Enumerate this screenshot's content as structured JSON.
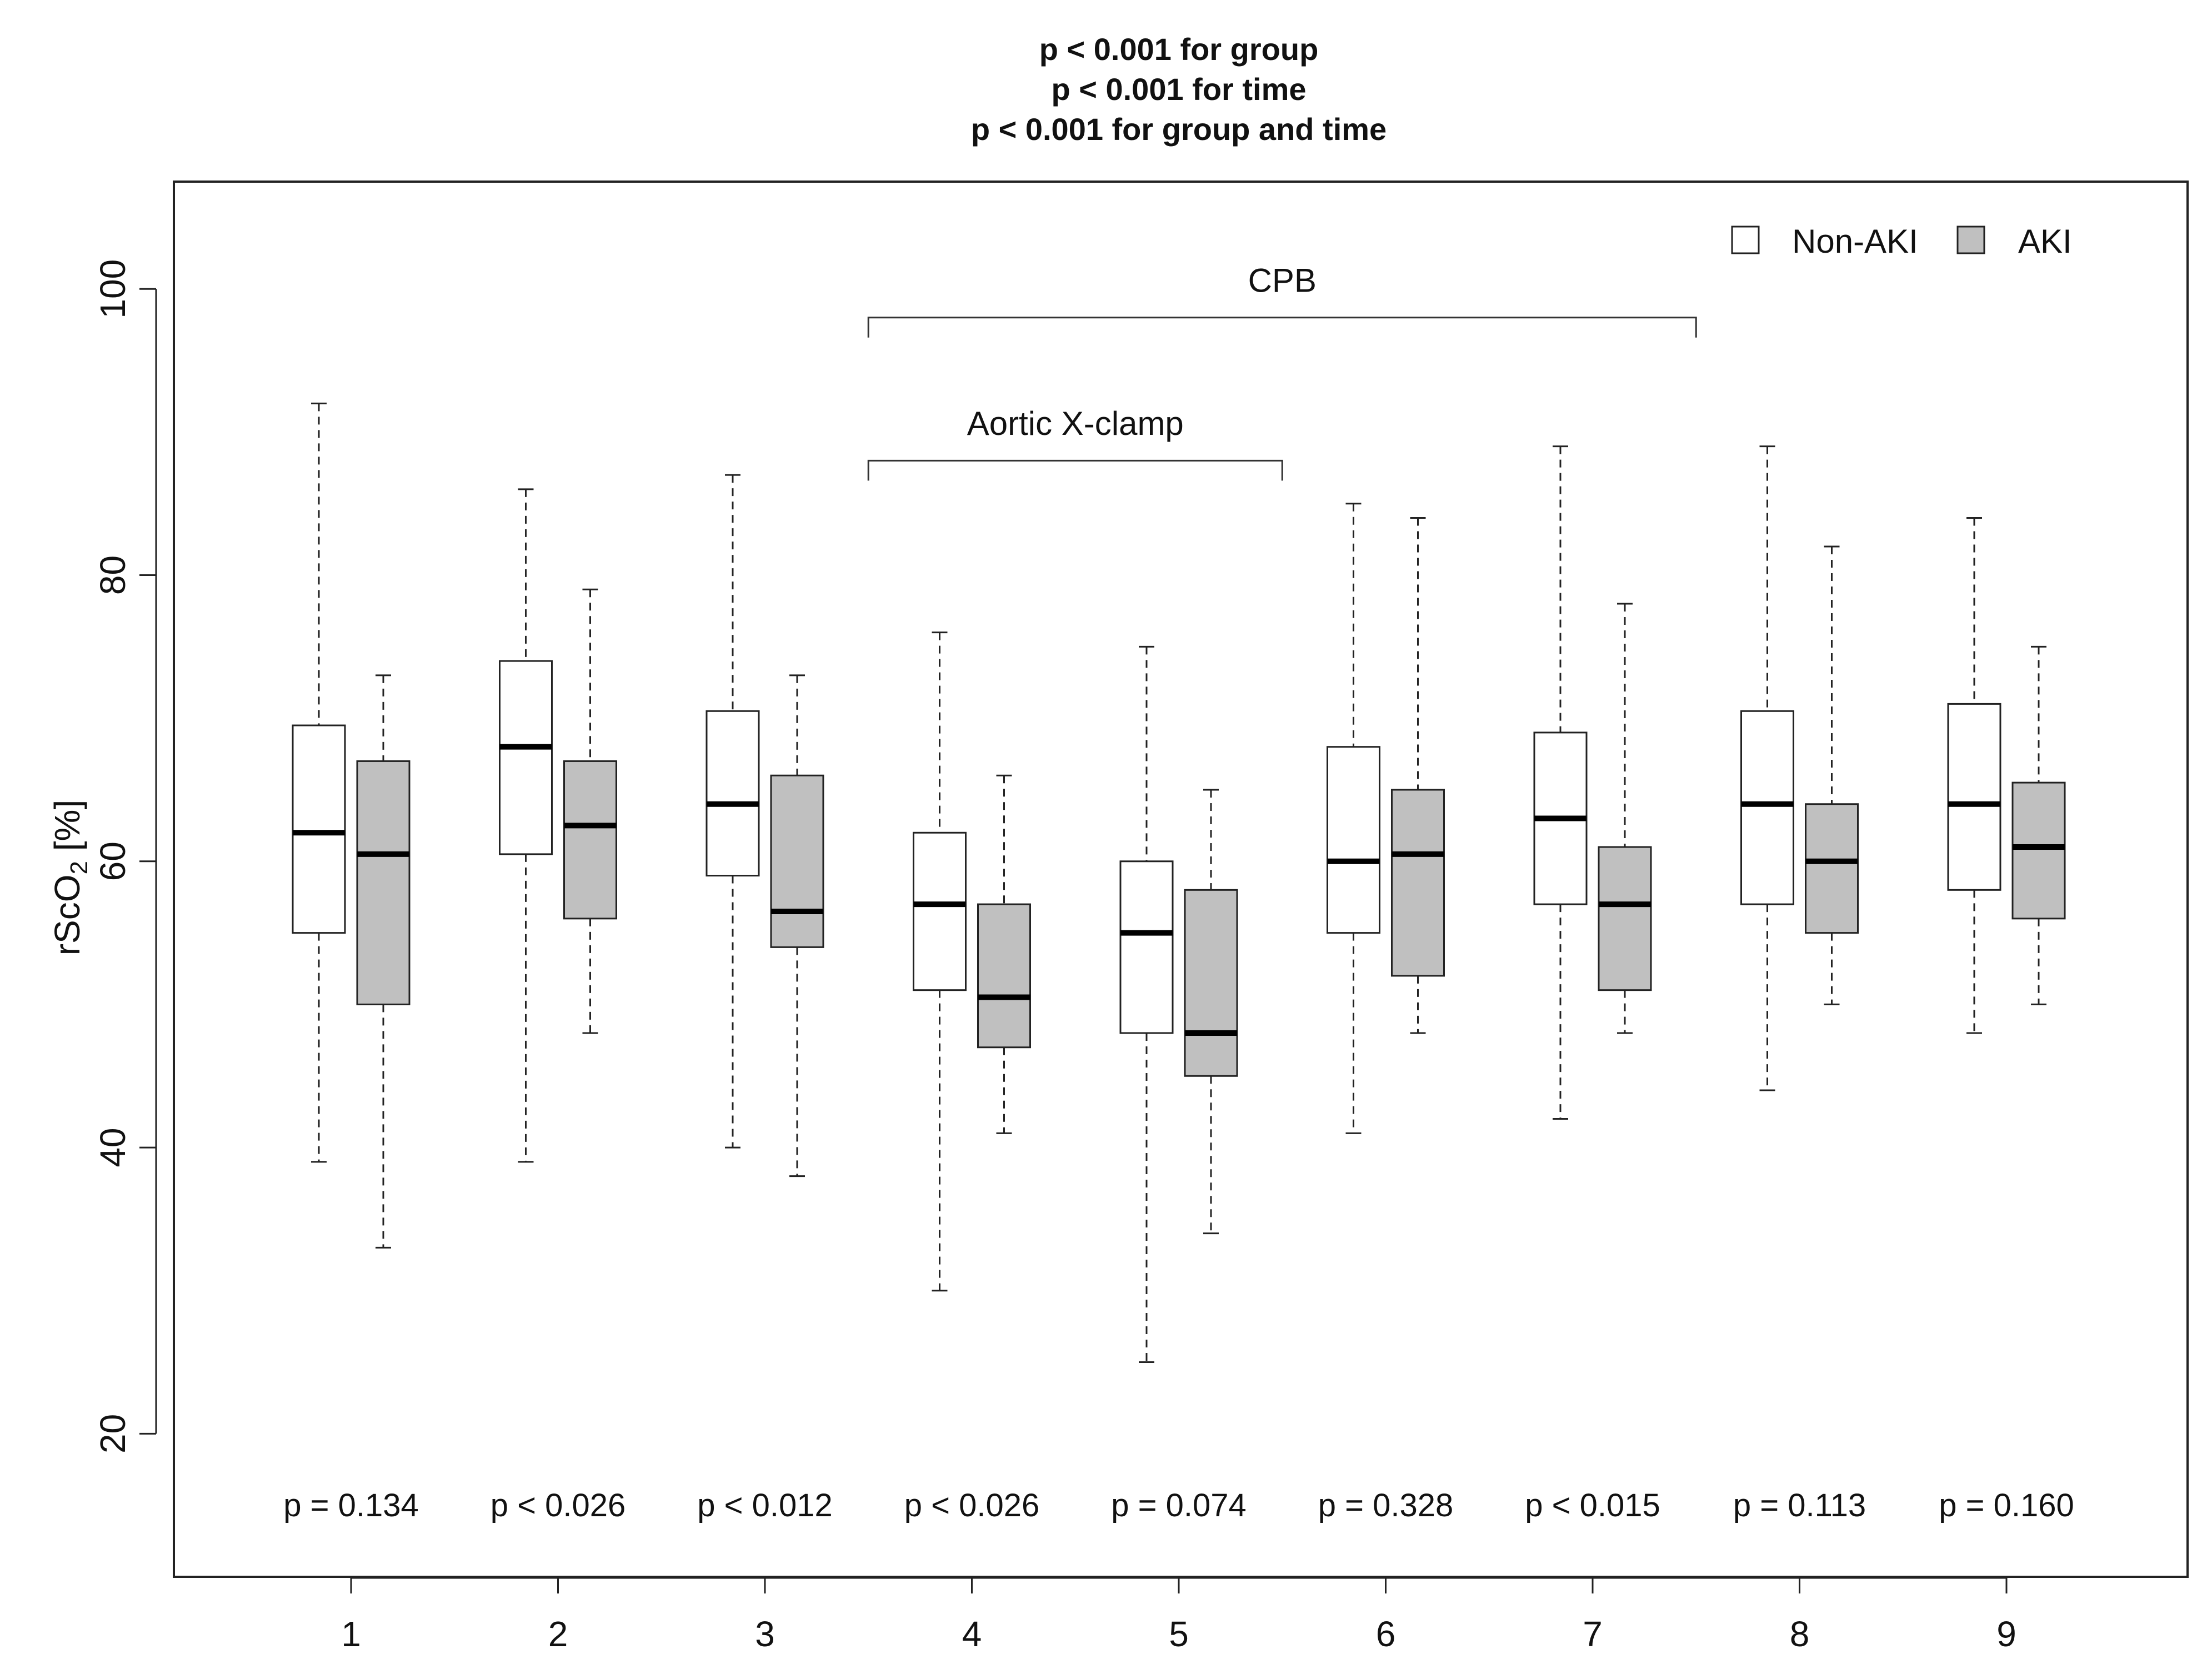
{
  "chart_data": {
    "type": "boxplot",
    "title_lines": [
      "p < 0.001 for group",
      "p < 0.001 for time",
      "p < 0.001 for group and time"
    ],
    "ylabel": {
      "main": "rScO",
      "sub": "2",
      "unit": " [%]"
    },
    "ylim": [
      10,
      107.5
    ],
    "y_ticks": [
      "20",
      "40",
      "60",
      "80",
      "100"
    ],
    "x_ticks": [
      "1",
      "2",
      "3",
      "4",
      "5",
      "6",
      "7",
      "8",
      "9"
    ],
    "legend": [
      {
        "name": "Non-AKI",
        "color": "#ffffff"
      },
      {
        "name": "AKI",
        "color": "#c0c0c0"
      }
    ],
    "series": [
      {
        "name": "Non-AKI",
        "color": "#ffffff",
        "boxes": [
          {
            "time": 1,
            "min": 39,
            "q1": 55,
            "median": 62,
            "q3": 69.5,
            "max": 92
          },
          {
            "time": 2,
            "min": 39,
            "q1": 60.5,
            "median": 68,
            "q3": 74,
            "max": 86
          },
          {
            "time": 3,
            "min": 40,
            "q1": 59,
            "median": 64,
            "q3": 70.5,
            "max": 87
          },
          {
            "time": 4,
            "min": 30,
            "q1": 51,
            "median": 57,
            "q3": 62,
            "max": 76
          },
          {
            "time": 5,
            "min": 25,
            "q1": 48,
            "median": 55,
            "q3": 60,
            "max": 75
          },
          {
            "time": 6,
            "min": 41,
            "q1": 55,
            "median": 60,
            "q3": 68,
            "max": 85
          },
          {
            "time": 7,
            "min": 42,
            "q1": 57,
            "median": 63,
            "q3": 69,
            "max": 89
          },
          {
            "time": 8,
            "min": 44,
            "q1": 57,
            "median": 64,
            "q3": 70.5,
            "max": 89
          },
          {
            "time": 9,
            "min": 48,
            "q1": 58,
            "median": 64,
            "q3": 71,
            "max": 84
          }
        ]
      },
      {
        "name": "AKI",
        "color": "#c0c0c0",
        "boxes": [
          {
            "time": 1,
            "min": 33,
            "q1": 50,
            "median": 60.5,
            "q3": 67,
            "max": 73
          },
          {
            "time": 2,
            "min": 48,
            "q1": 56,
            "median": 62.5,
            "q3": 67,
            "max": 79
          },
          {
            "time": 3,
            "min": 38,
            "q1": 54,
            "median": 56.5,
            "q3": 66,
            "max": 73
          },
          {
            "time": 4,
            "min": 41,
            "q1": 47,
            "median": 50.5,
            "q3": 57,
            "max": 66
          },
          {
            "time": 5,
            "min": 34,
            "q1": 45,
            "median": 48,
            "q3": 58,
            "max": 65
          },
          {
            "time": 6,
            "min": 48,
            "q1": 52,
            "median": 60.5,
            "q3": 65,
            "max": 84
          },
          {
            "time": 7,
            "min": 48,
            "q1": 51,
            "median": 57,
            "q3": 61,
            "max": 78
          },
          {
            "time": 8,
            "min": 50,
            "q1": 55,
            "median": 60,
            "q3": 64,
            "max": 82
          },
          {
            "time": 9,
            "min": 50,
            "q1": 56,
            "median": 61,
            "q3": 65.5,
            "max": 75
          }
        ]
      }
    ],
    "p_values": [
      "p = 0.134",
      "p < 0.026",
      "p < 0.012",
      "p < 0.026",
      "p = 0.074",
      "p = 0.328",
      "p < 0.015",
      "p = 0.113",
      "p = 0.160"
    ],
    "p_value_y": 15,
    "brackets": [
      {
        "label": "CPB",
        "from": 3.5,
        "to": 7.5,
        "y": 98,
        "label_y": 99.8
      },
      {
        "label": "Aortic X-clamp",
        "from": 3.5,
        "to": 5.5,
        "y": 88,
        "label_y": 89.8
      }
    ]
  }
}
